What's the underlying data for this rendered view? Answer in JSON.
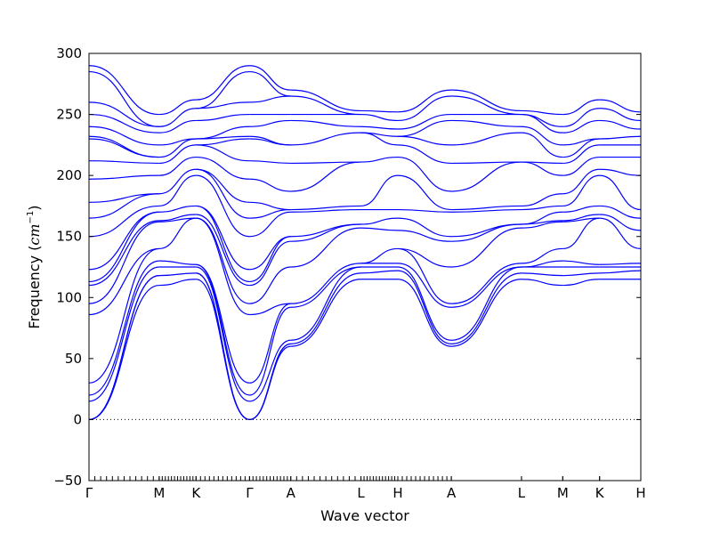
{
  "chart_data": {
    "type": "line",
    "xlabel": "Wave vector",
    "ylabel_text": "Frequency (",
    "ylabel_unit": "cm",
    "ylabel_exp": "−1",
    "ylabel_close": ")",
    "ylim": [
      -50,
      300
    ],
    "yticks": [
      -50,
      0,
      50,
      100,
      150,
      200,
      250,
      300
    ],
    "xlim": [
      0,
      1
    ],
    "high_symmetry_points": [
      {
        "label": "Γ",
        "x": 0.0
      },
      {
        "label": "M",
        "x": 0.1923
      },
      {
        "label": "K",
        "x": 0.2933
      },
      {
        "label": "Γ",
        "x": 0.4399
      },
      {
        "label": "A",
        "x": 0.5529
      },
      {
        "label": "L",
        "x": 0.7452
      },
      {
        "label": "H",
        "x": 0.8462
      },
      {
        "label": "A",
        "x": 0.9928
      }
    ],
    "secondary_points": [
      {
        "label": "L",
        "x": 1.1851
      },
      {
        "label": "M",
        "x": 1.2981
      },
      {
        "label": "K",
        "x": 1.3991
      },
      {
        "label": "H",
        "x": 1.512
      }
    ],
    "series_color": "#0000ff",
    "zero_line": true,
    "grid": false,
    "segments": [
      {
        "from": "Γ",
        "to": "M",
        "x0": 0.0,
        "x1": 0.1923
      },
      {
        "from": "M",
        "to": "K",
        "x0": 0.1923,
        "x1": 0.2933
      },
      {
        "from": "K",
        "to": "Γ",
        "x0": 0.2933,
        "x1": 0.4399
      },
      {
        "from": "Γ",
        "to": "A",
        "x0": 0.4399,
        "x1": 0.5529
      },
      {
        "from": "A",
        "to": "L",
        "x0": 0.5529,
        "x1": 0.7452
      },
      {
        "from": "L",
        "to": "H",
        "x0": 0.7452,
        "x1": 0.8462
      },
      {
        "from": "H",
        "to": "A",
        "x0": 0.8462,
        "x1": 0.9928
      },
      {
        "from": "A",
        "to": "L",
        "x0": 0.9928,
        "x1": 1.1851
      },
      {
        "from": "L",
        "to": "M",
        "x0": 1.1851,
        "x1": 1.2981
      },
      {
        "from": "M",
        "to": "K",
        "x0": 1.2981,
        "x1": 1.3991
      },
      {
        "from": "K",
        "to": "H",
        "x0": 1.3991,
        "x1": 1.512
      }
    ],
    "bands_at_points": {
      "Γ": [
        0,
        0,
        0,
        30,
        20,
        15,
        86,
        95,
        110,
        113,
        123,
        150,
        165,
        178,
        197,
        212,
        230,
        232,
        240,
        250,
        260,
        285,
        290
      ],
      "M": [
        110,
        118,
        125,
        130,
        140,
        162,
        163,
        170,
        175,
        185,
        200,
        210,
        215,
        225,
        235,
        240,
        250
      ],
      "K": [
        115,
        120,
        125,
        127,
        165,
        168,
        175,
        200,
        205,
        215,
        225,
        230,
        245,
        255,
        262
      ],
      "A": [
        60,
        62,
        65,
        92,
        95,
        125,
        146,
        150,
        170,
        172,
        187,
        210,
        225,
        245,
        250,
        265,
        270
      ],
      "L": [
        115,
        120,
        125,
        128,
        157,
        160,
        172,
        175,
        211,
        235,
        240,
        250,
        253
      ],
      "H": [
        115,
        122,
        125,
        128,
        140,
        155,
        165,
        172,
        200,
        215,
        225,
        232,
        238,
        245,
        252
      ]
    }
  }
}
